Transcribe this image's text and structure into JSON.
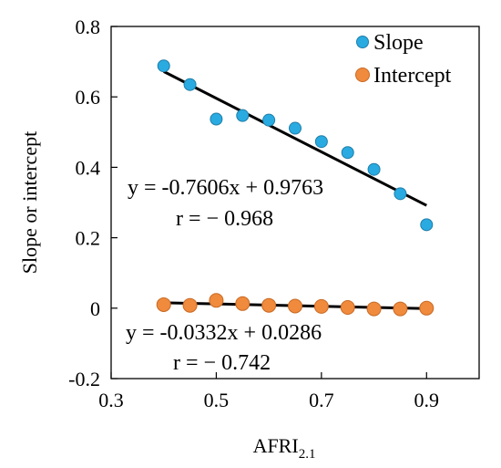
{
  "chart_data": {
    "type": "scatter",
    "xlabel": "AFRI",
    "xlabel_subscript": "2.1",
    "ylabel": "Slope or intercept",
    "xlim": [
      0.3,
      1.0
    ],
    "ylim": [
      -0.2,
      0.8
    ],
    "x_ticks": [
      "0.3",
      "0.5",
      "0.7",
      "0.9"
    ],
    "x_tick_values": [
      0.3,
      0.5,
      0.7,
      0.9
    ],
    "y_ticks": [
      "-0.2",
      "0",
      "0.2",
      "0.4",
      "0.6",
      "0.8"
    ],
    "y_tick_values": [
      -0.2,
      0.0,
      0.2,
      0.4,
      0.6,
      0.8
    ],
    "grid": false,
    "legend_position": "top-right",
    "series": [
      {
        "name": "Slope",
        "color": "#29ABE2",
        "x": [
          0.4,
          0.45,
          0.5,
          0.55,
          0.6,
          0.65,
          0.7,
          0.75,
          0.8,
          0.85,
          0.9
        ],
        "y": [
          0.688,
          0.635,
          0.537,
          0.547,
          0.534,
          0.511,
          0.473,
          0.442,
          0.394,
          0.325,
          0.237
        ],
        "trendline": {
          "slope": -0.7606,
          "intercept": 0.9763,
          "x_range": [
            0.4,
            0.9
          ],
          "color": "#000000"
        }
      },
      {
        "name": "Intercept",
        "color": "#F08A3C",
        "x": [
          0.4,
          0.45,
          0.5,
          0.55,
          0.6,
          0.65,
          0.7,
          0.75,
          0.8,
          0.85,
          0.9
        ],
        "y": [
          0.01,
          0.008,
          0.022,
          0.013,
          0.008,
          0.006,
          0.005,
          0.002,
          -0.002,
          -0.002,
          0.0
        ],
        "trendline": {
          "slope": -0.0332,
          "intercept": 0.0286,
          "x_range": [
            0.4,
            0.9
          ],
          "color": "#000000"
        }
      }
    ],
    "annotations": [
      {
        "text": "y = -0.7606x + 0.9763",
        "series": "Slope"
      },
      {
        "text": "r = − 0.968",
        "series": "Slope"
      },
      {
        "text": "y = -0.0332x + 0.0286",
        "series": "Intercept"
      },
      {
        "text": "r = − 0.742",
        "series": "Intercept"
      }
    ]
  }
}
